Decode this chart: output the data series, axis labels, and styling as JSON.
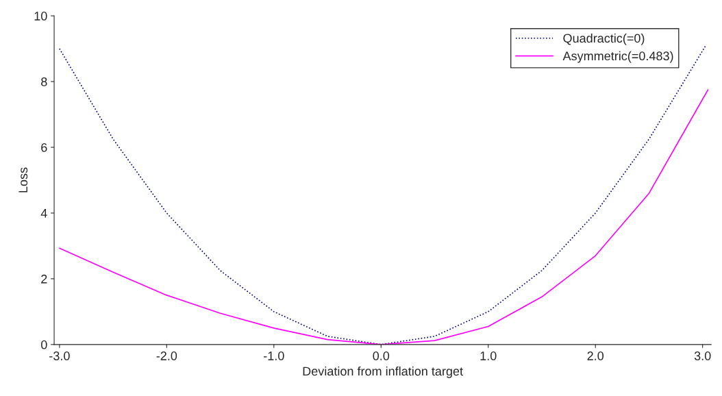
{
  "chart_data": {
    "type": "line",
    "xlabel": "Deviation from inflation target",
    "ylabel": "Loss",
    "xlim": [
      -3.05,
      3.08
    ],
    "ylim": [
      0,
      10
    ],
    "xticks": [
      {
        "value": -3,
        "label": "-3.0"
      },
      {
        "value": -2,
        "label": "-2.0"
      },
      {
        "value": -1,
        "label": "-1.0"
      },
      {
        "value": 0,
        "label": "0.0"
      },
      {
        "value": 1,
        "label": "1.0"
      },
      {
        "value": 2,
        "label": "2.0"
      },
      {
        "value": 3,
        "label": "3.0"
      }
    ],
    "yticks": [
      0,
      2,
      4,
      6,
      8,
      10
    ],
    "grid": false,
    "legend": "top right",
    "marker": "none",
    "series": [
      {
        "name": "Quadractic(=0)",
        "color": "#000080",
        "line_style": "dotted",
        "x": [
          -3,
          -2.5,
          -2,
          -1.5,
          -1,
          -0.5,
          0,
          0.5,
          1,
          1.5,
          2,
          2.5,
          3.03
        ],
        "values": [
          9,
          6.25,
          4,
          2.25,
          1,
          0.25,
          0,
          0.25,
          1,
          2.25,
          4,
          6.25,
          9.1
        ]
      },
      {
        "name": "Asymmetric(=0.483)",
        "color": "#ff00ff",
        "line_style": "solid",
        "x": [
          -3,
          -2.5,
          -2,
          -1.5,
          -1,
          -0.5,
          0,
          0.5,
          1,
          1.5,
          2,
          2.5,
          3.05
        ],
        "values": [
          2.93,
          2.2,
          1.5,
          0.95,
          0.5,
          0.15,
          0,
          0.12,
          0.55,
          1.45,
          2.7,
          4.6,
          7.75
        ]
      }
    ]
  }
}
